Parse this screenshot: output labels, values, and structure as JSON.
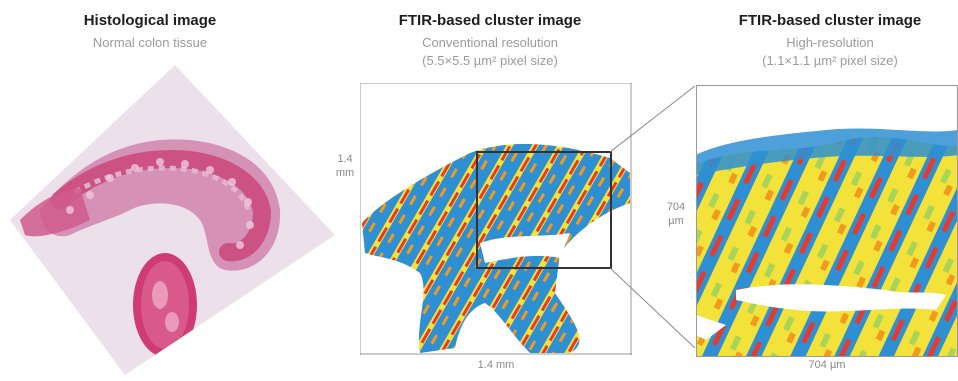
{
  "panels": [
    {
      "title": "Histological image",
      "subtitle": "Normal colon tissue"
    },
    {
      "title": "FTIR-based cluster image",
      "subtitle_line1": "Conventional resolution",
      "subtitle_line2": "(5.5×5.5 µm² pixel size)",
      "y_label_top": "1.4",
      "y_label_bottom": "mm",
      "x_label": "1.4 mm"
    },
    {
      "title": "FTIR-based cluster image",
      "subtitle_line1": "High-resolution",
      "subtitle_line2": "(1.1×1.1 µm² pixel size)",
      "y_label_top": "704",
      "y_label_bottom": "µm",
      "x_label": "704 µm"
    }
  ],
  "colors": {
    "he_pink": "#d8a0c0",
    "he_red": "#d8306a",
    "cluster_blue": "#2e8fd2",
    "cluster_yellow": "#f2e23a",
    "cluster_red": "#e63a2e",
    "cluster_orange": "#f29a1e",
    "cluster_green": "#a8d45a"
  }
}
